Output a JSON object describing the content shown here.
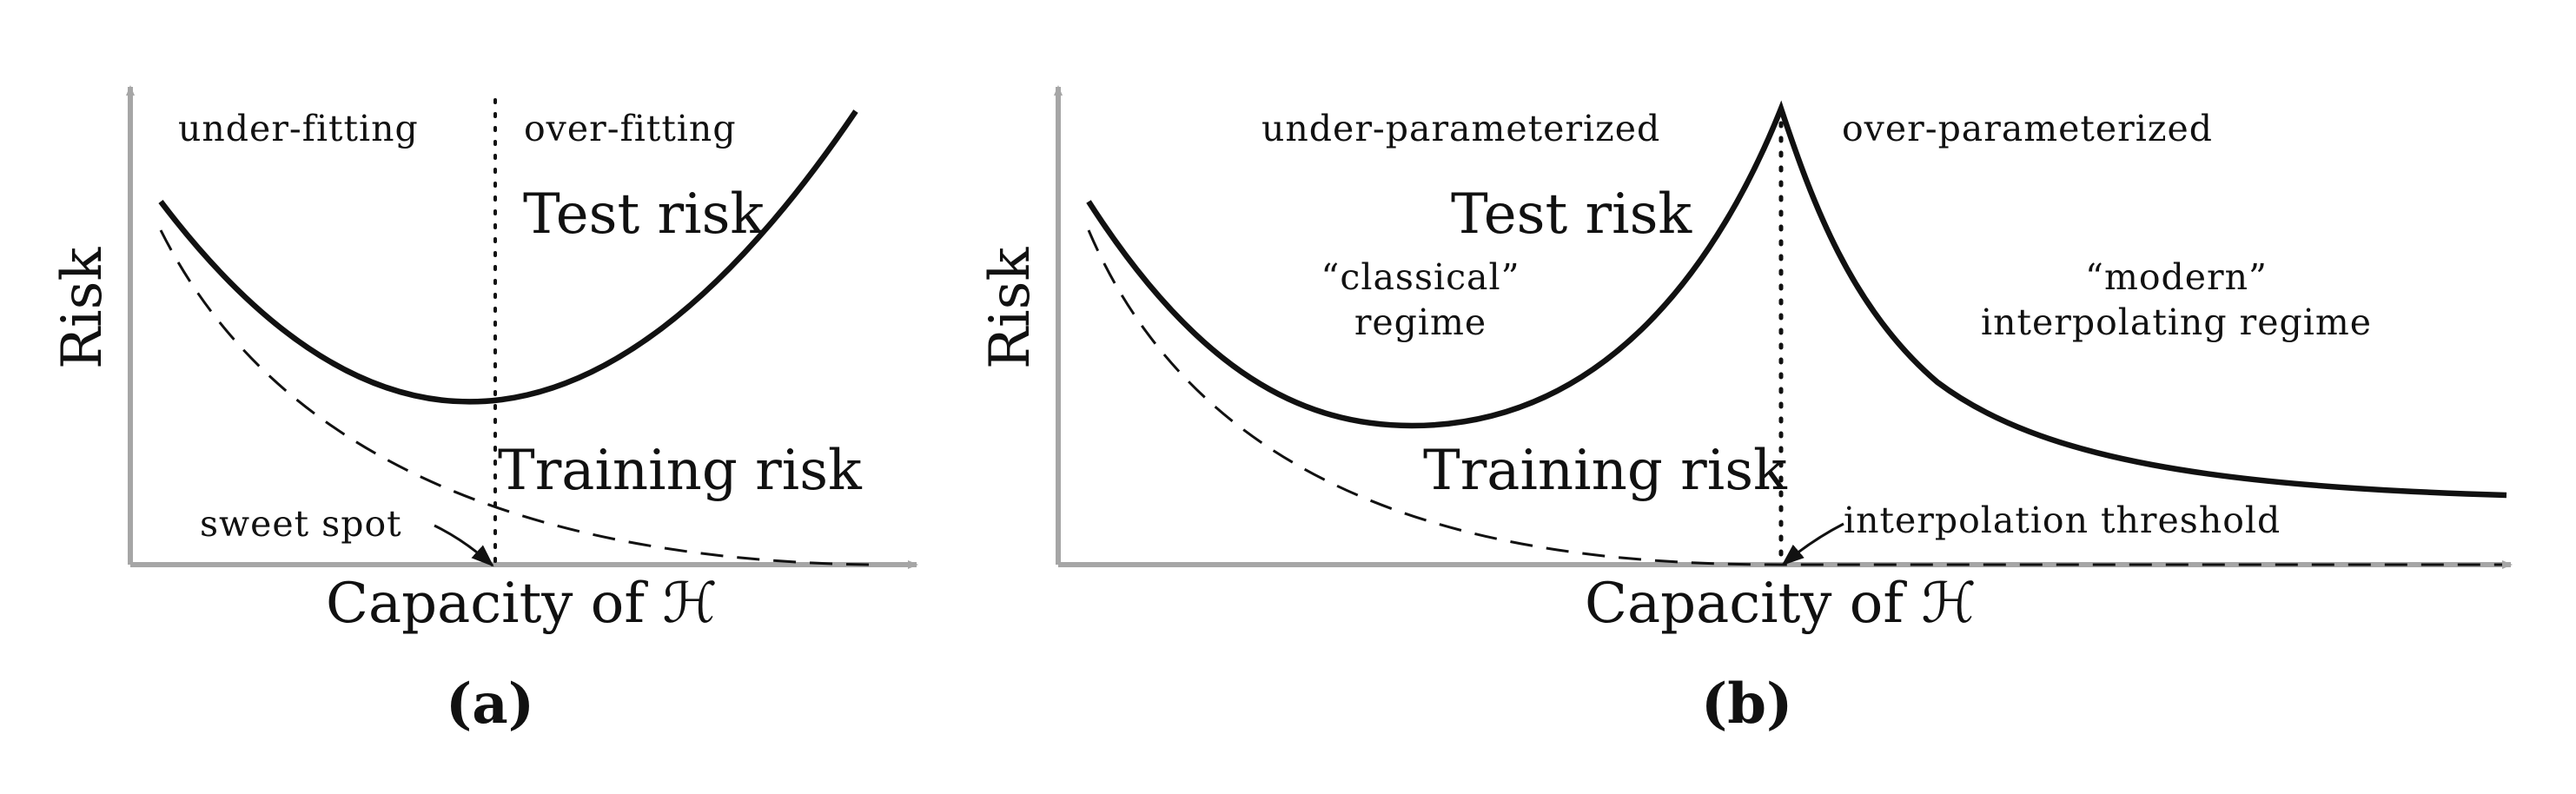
{
  "colors": {
    "axis": "#a6a6a6",
    "curve": "#111111",
    "background": "#ffffff"
  },
  "panels": [
    {
      "id": "a",
      "label": "(a)",
      "ylabel": "Risk",
      "xlabel": "Capacity of ℋ",
      "region_left": "under-fitting",
      "region_right": "over-fitting",
      "test_label": "Test risk",
      "train_label": "Training risk",
      "annotation": "sweet spot"
    },
    {
      "id": "b",
      "label": "(b)",
      "ylabel": "Risk",
      "xlabel": "Capacity of ℋ",
      "region_left": "under-parameterized",
      "region_right": "over-parameterized",
      "test_label": "Test risk",
      "train_label": "Training risk",
      "annotation": "interpolation threshold",
      "regime_classical_1": "“classical”",
      "regime_classical_2": "regime",
      "regime_modern_1": "“modern”",
      "regime_modern_2": "interpolating regime"
    }
  ]
}
